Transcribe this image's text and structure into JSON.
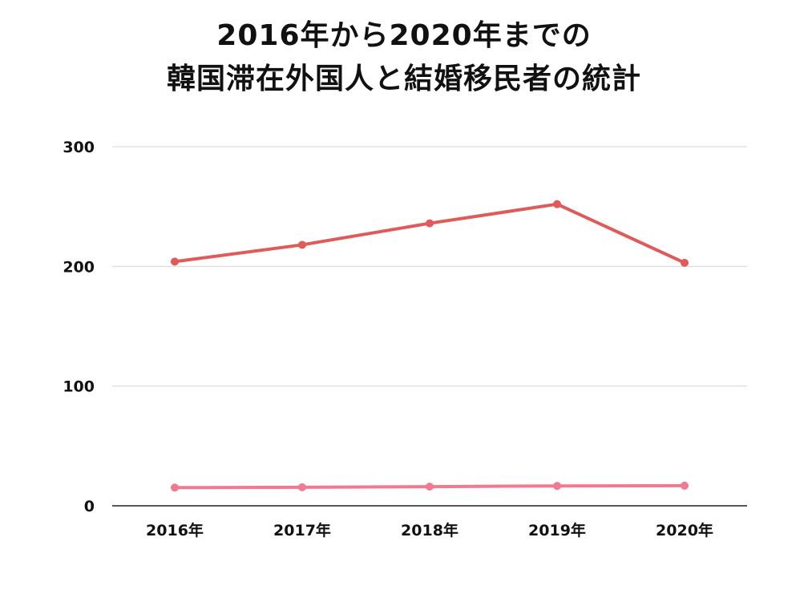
{
  "title_lines": [
    "2016年から2020年までの",
    "韓国滞在外国人と結婚移民者の統計"
  ],
  "chart_data": {
    "type": "line",
    "title": "2016年から2020年までの 韓国滞在外国人と結婚移民者の統計",
    "categories": [
      "2016年",
      "2017年",
      "2018年",
      "2019年",
      "2020年"
    ],
    "series": [
      {
        "values": [
          204,
          218,
          236,
          252,
          203
        ],
        "color": "#e05a5a"
      },
      {
        "values": [
          15.2,
          15.5,
          16.0,
          16.6,
          16.8
        ],
        "color": "#f07a90"
      }
    ],
    "ylim": [
      0,
      300
    ],
    "yticks": [
      0,
      100,
      200,
      300
    ],
    "grid": true,
    "legend": "none"
  }
}
